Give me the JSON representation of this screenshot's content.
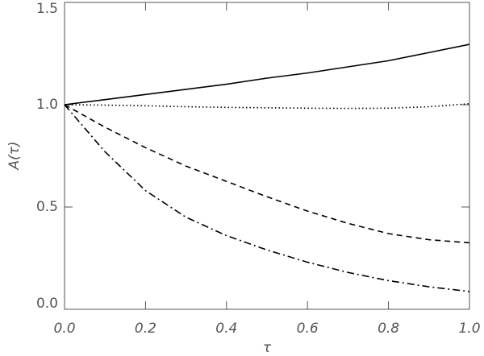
{
  "chart_data": {
    "type": "line",
    "x_label": "τ",
    "y_label": "A(τ)",
    "x": [
      0,
      0.1,
      0.2,
      0.3,
      0.4,
      0.5,
      0.6,
      0.7,
      0.8,
      0.9,
      1.0
    ],
    "series": [
      {
        "color": "#000000",
        "dash": "solid",
        "values": [
          1.0,
          1.025,
          1.05,
          1.075,
          1.1,
          1.13,
          1.155,
          1.185,
          1.215,
          1.255,
          1.295
        ]
      },
      {
        "color": "#000000",
        "dash": "dotted",
        "values": [
          1.0,
          0.998,
          0.995,
          0.99,
          0.987,
          0.985,
          0.983,
          0.982,
          0.983,
          0.99,
          1.005
        ]
      },
      {
        "color": "#000000",
        "dash": "dashed",
        "values": [
          1.0,
          0.89,
          0.79,
          0.7,
          0.625,
          0.55,
          0.48,
          0.42,
          0.37,
          0.34,
          0.325
        ]
      },
      {
        "color": "#000000",
        "dash": "dashdot",
        "values": [
          1.0,
          0.77,
          0.58,
          0.45,
          0.36,
          0.29,
          0.23,
          0.18,
          0.14,
          0.11,
          0.087
        ]
      }
    ],
    "xlim": [
      0,
      1.0
    ],
    "ylim": [
      0,
      1.5
    ],
    "xticks": [
      {
        "value": 0,
        "label": "0.0"
      },
      {
        "value": 0.2,
        "label": "0.2"
      },
      {
        "value": 0.4,
        "label": "0.4"
      },
      {
        "value": 0.6,
        "label": "0.6"
      },
      {
        "value": 0.8,
        "label": "0.8"
      },
      {
        "value": 1.0,
        "label": "1.0"
      }
    ],
    "yticks": [
      {
        "value": 0,
        "label": "0.0"
      },
      {
        "value": 0.5,
        "label": "0.5"
      },
      {
        "value": 1.0,
        "label": "1.0"
      },
      {
        "value": 1.5,
        "label": "1.5"
      }
    ],
    "grid": false
  }
}
